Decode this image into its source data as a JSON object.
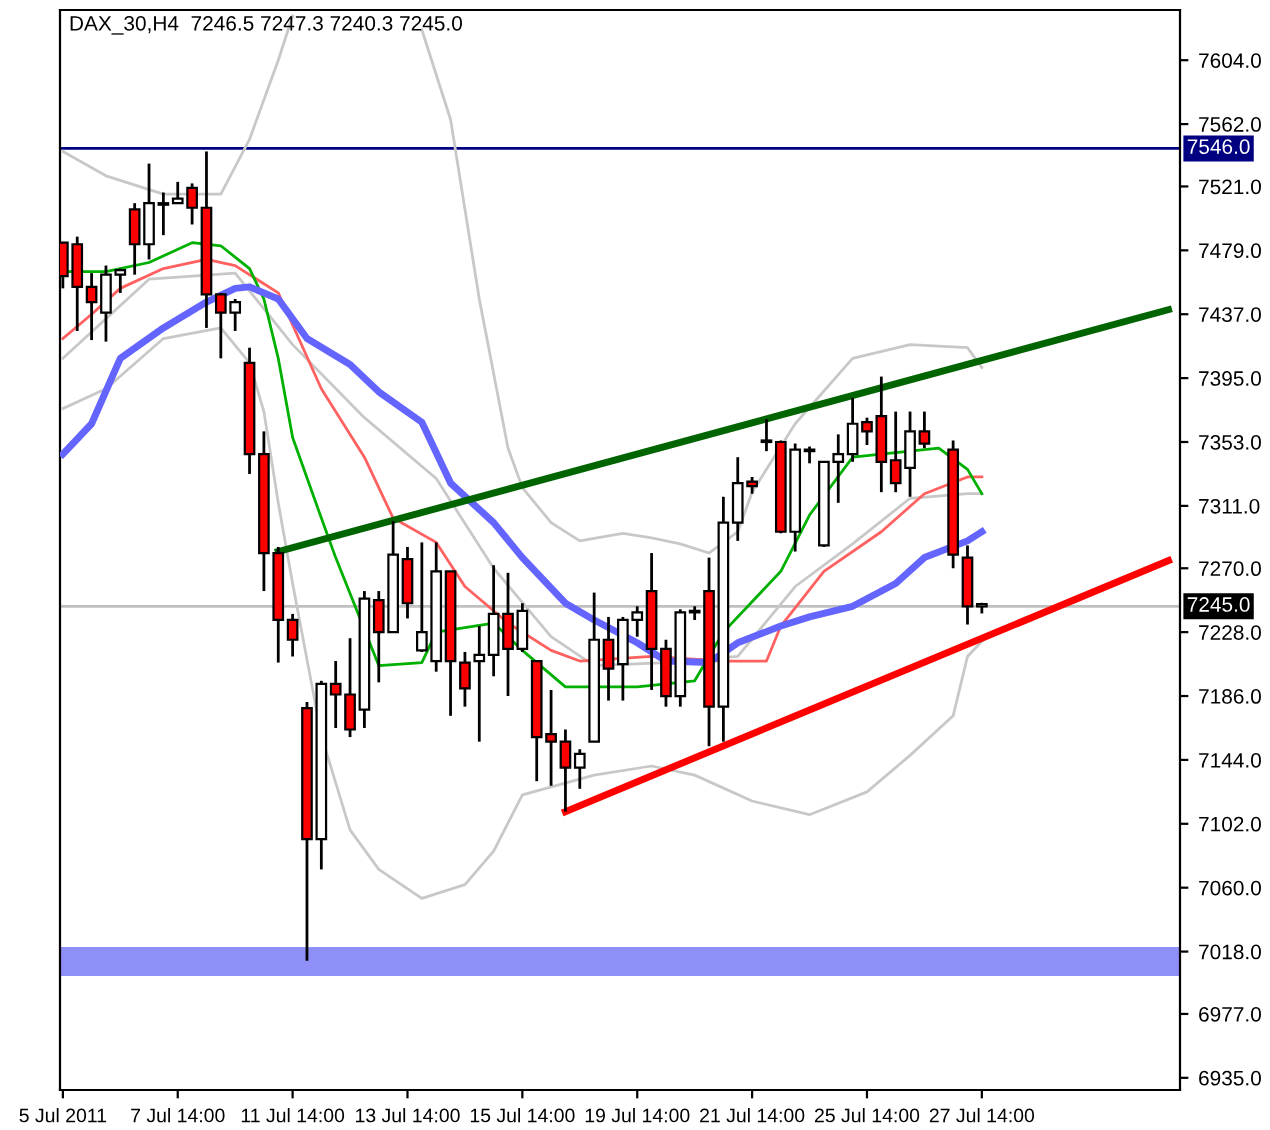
{
  "chart_data": {
    "type": "candlestick",
    "title": "DAX_30,H4  7246.5 7247.3 7240.3 7245.0",
    "categories": [
      "5 Jul 2011",
      null,
      null,
      null,
      null,
      null,
      null,
      null,
      "7 Jul 14:00",
      null,
      null,
      null,
      null,
      null,
      null,
      null,
      "11 Jul 14:00",
      null,
      null,
      null,
      null,
      null,
      null,
      null,
      "13 Jul 14:00",
      null,
      null,
      null,
      null,
      null,
      null,
      null,
      "15 Jul 14:00",
      null,
      null,
      null,
      null,
      null,
      null,
      null,
      "19 Jul 14:00",
      null,
      null,
      null,
      null,
      null,
      null,
      null,
      "21 Jul 14:00",
      null,
      null,
      null,
      null,
      null,
      null,
      null,
      "25 Jul 14:00",
      null,
      null,
      null,
      null,
      null,
      null,
      null,
      "27 Jul 14:00",
      null,
      null,
      null,
      null,
      null,
      null,
      null,
      null,
      null,
      null,
      null,
      null,
      null
    ],
    "ohlc": [
      [
        7484,
        7484,
        7454,
        7462
      ],
      [
        7483,
        7488,
        7426,
        7455
      ],
      [
        7455,
        7464,
        7420,
        7445
      ],
      [
        7438,
        7469,
        7419,
        7463
      ],
      [
        7463,
        7467,
        7451,
        7466
      ],
      [
        7506,
        7510,
        7463,
        7483
      ],
      [
        7483,
        7536,
        7473,
        7510
      ],
      [
        7509,
        7517,
        7489,
        7510
      ],
      [
        7510,
        7524,
        7510,
        7513
      ],
      [
        7520,
        7523,
        7496,
        7507
      ],
      [
        7507,
        7544,
        7428,
        7450
      ],
      [
        7450,
        7451,
        7408,
        7438
      ],
      [
        7438,
        7447,
        7426,
        7445
      ],
      [
        7405,
        7415,
        7332,
        7345
      ],
      [
        7345,
        7360,
        7255,
        7280
      ],
      [
        7280,
        7284,
        7208,
        7236
      ],
      [
        7236,
        7240,
        7212,
        7223
      ],
      [
        7178,
        7182,
        7012,
        7092
      ],
      [
        7092,
        7196,
        7072,
        7194
      ],
      [
        7194,
        7209,
        7165,
        7187
      ],
      [
        7187,
        7224,
        7159,
        7164
      ],
      [
        7177,
        7255,
        7165,
        7250
      ],
      [
        7249,
        7255,
        7195,
        7228
      ],
      [
        7228,
        7301,
        7228,
        7279
      ],
      [
        7276,
        7284,
        7237,
        7247
      ],
      [
        7216,
        7287,
        7215,
        7228
      ],
      [
        7209,
        7287,
        7202,
        7268
      ],
      [
        7268,
        7268,
        7173,
        7209
      ],
      [
        7208,
        7215,
        7179,
        7191
      ],
      [
        7209,
        7232,
        7156,
        7213
      ],
      [
        7213,
        7272,
        7199,
        7240
      ],
      [
        7240,
        7267,
        7186,
        7217
      ],
      [
        7217,
        7247,
        7215,
        7242
      ],
      [
        7209,
        7209,
        7130,
        7159
      ],
      [
        7161,
        7190,
        7127,
        7156
      ],
      [
        7156,
        7164,
        7110,
        7139
      ],
      [
        7139,
        7151,
        7125,
        7148
      ],
      [
        7156,
        7254,
        7156,
        7223
      ],
      [
        7223,
        7238,
        7183,
        7204
      ],
      [
        7207,
        7238,
        7183,
        7236
      ],
      [
        7236,
        7245,
        7225,
        7241
      ],
      [
        7255,
        7280,
        7190,
        7217
      ],
      [
        7217,
        7223,
        7179,
        7186
      ],
      [
        7186,
        7243,
        7179,
        7241
      ],
      [
        7241,
        7245,
        7236,
        7242
      ],
      [
        7255,
        7277,
        7153,
        7179
      ],
      [
        7179,
        7317,
        7156,
        7300
      ],
      [
        7300,
        7343,
        7288,
        7326
      ],
      [
        7327,
        7330,
        7319,
        7324
      ],
      [
        7353,
        7368,
        7347,
        7354
      ],
      [
        7353,
        7354,
        7293,
        7294
      ],
      [
        7294,
        7352,
        7281,
        7348
      ],
      [
        7347,
        7350,
        7339,
        7348
      ],
      [
        7285,
        7340,
        7284,
        7340
      ],
      [
        7340,
        7358,
        7313,
        7345
      ],
      [
        7345,
        7382,
        7340,
        7365
      ],
      [
        7366,
        7369,
        7351,
        7360
      ],
      [
        7370,
        7396,
        7320,
        7340
      ],
      [
        7341,
        7373,
        7320,
        7326
      ],
      [
        7336,
        7373,
        7317,
        7360
      ],
      [
        7360,
        7373,
        7349,
        7352
      ],
      null,
      [
        7348,
        7354,
        7270,
        7279
      ],
      [
        7277,
        7285,
        7233,
        7245
      ],
      [
        7246.5,
        7247.3,
        7240.3,
        7245.0
      ],
      null,
      null,
      null,
      null,
      null,
      null,
      null,
      null,
      null,
      null,
      null,
      null,
      null
    ],
    "colors": [
      "#ff0000",
      "#ff0000",
      "#ff0000",
      "#ffffff",
      "#ffffff",
      "#ff0000",
      "#ffffff",
      "#ffffff",
      "#ffffff",
      "#ff0000",
      "#ff0000",
      "#ff0000",
      "#ffffff",
      "#ff0000",
      "#ff0000",
      "#ff0000",
      "#ff0000",
      "#ff0000",
      "#ffffff",
      "#ff0000",
      "#ff0000",
      "#ffffff",
      "#ff0000",
      "#ffffff",
      "#ff0000",
      "#ffffff",
      "#ffffff",
      "#ff0000",
      "#ff0000",
      "#ffffff",
      "#ffffff",
      "#ff0000",
      "#ffffff",
      "#ff0000",
      "#ff0000",
      "#ff0000",
      "#ffffff",
      "#ffffff",
      "#ff0000",
      "#ffffff",
      "#ffffff",
      "#ff0000",
      "#ff0000",
      "#ffffff",
      "#ffffff",
      "#ff0000",
      "#ffffff",
      "#ffffff",
      "#ff0000",
      "#ffffff",
      "#ff0000",
      "#ffffff",
      "#ffffff",
      "#ffffff",
      "#ffffff",
      "#ffffff",
      "#ff0000",
      "#ff0000",
      "#ff0000",
      "#ffffff",
      "#ff0000",
      null,
      "#ff0000",
      "#ff0000",
      "#ffffff",
      null,
      null,
      null,
      null,
      null,
      null,
      null,
      null,
      null,
      null,
      null,
      null,
      null
    ],
    "series": [
      {
        "type": "line",
        "color": "#c8c8c8",
        "values": [
          7544,
          null,
          null,
          7528,
          null,
          null,
          null,
          7516,
          null,
          null,
          null,
          7516,
          null,
          7552,
          null,
          7604,
          7633,
          null,
          null,
          null,
          null,
          null,
          null,
          null,
          null,
          null,
          null,
          null,
          null,
          null,
          null,
          null,
          null,
          null,
          null,
          null,
          null,
          null,
          null,
          null,
          null,
          null,
          null,
          null,
          null,
          null,
          null,
          null,
          null,
          null,
          null,
          null,
          null,
          null,
          null,
          null,
          null,
          null,
          null,
          null,
          null,
          null,
          null,
          null,
          null,
          null,
          null,
          null,
          null,
          null,
          null,
          null,
          null,
          null,
          null,
          null,
          null,
          null
        ]
      },
      {
        "type": "line",
        "color": "#c8c8c8",
        "values": [
          null,
          null,
          null,
          null,
          null,
          null,
          null,
          null,
          null,
          null,
          null,
          null,
          null,
          null,
          null,
          null,
          null,
          null,
          null,
          null,
          null,
          null,
          null,
          null,
          null,
          7624,
          null,
          7565,
          null,
          7447,
          null,
          7349,
          7323,
          null,
          7300,
          null,
          7288,
          null,
          null,
          7293,
          null,
          7290,
          null,
          7286,
          null,
          7280,
          null,
          7294,
          7320,
          null,
          null,
          7365,
          null,
          null,
          null,
          7408,
          null,
          null,
          null,
          7417,
          null,
          null,
          null,
          7415,
          7402,
          null,
          null,
          null,
          null,
          null,
          null,
          null,
          null,
          null,
          null,
          null,
          null,
          null
        ]
      },
      {
        "type": "line",
        "color": "#c8c8c8",
        "values": [
          7375,
          null,
          null,
          7388,
          null,
          null,
          null,
          7421,
          null,
          null,
          null,
          7428,
          null,
          7405,
          7373,
          7313,
          7260,
          null,
          7160,
          null,
          7098,
          null,
          7072,
          null,
          null,
          7053,
          null,
          null,
          7062,
          null,
          7084,
          null,
          7121,
          null,
          null,
          null,
          null,
          7134,
          null,
          null,
          null,
          7140,
          null,
          null,
          7134,
          null,
          null,
          null,
          7117,
          null,
          null,
          null,
          7108,
          null,
          null,
          null,
          7123,
          null,
          null,
          7147,
          null,
          null,
          7173,
          7212,
          7222,
          null,
          null,
          null,
          null,
          null,
          null,
          null,
          null,
          null,
          null,
          null,
          null,
          null
        ]
      },
      {
        "type": "line",
        "color": "#c8c8c8",
        "values": [
          7408,
          null,
          null,
          null,
          null,
          null,
          7460,
          null,
          null,
          null,
          null,
          null,
          7464,
          null,
          null,
          null,
          7417,
          null,
          null,
          null,
          null,
          7369,
          null,
          null,
          null,
          null,
          7329,
          null,
          null,
          null,
          7270,
          null,
          null,
          null,
          7225,
          null,
          null,
          7206,
          null,
          null,
          null,
          null,
          7208,
          null,
          null,
          null,
          null,
          7212,
          null,
          null,
          null,
          7258,
          null,
          null,
          null,
          7286,
          null,
          null,
          null,
          7316,
          null,
          null,
          null,
          7319,
          7319,
          null,
          null,
          null,
          null,
          null,
          null,
          null,
          null,
          null,
          null,
          null,
          null,
          null
        ]
      },
      {
        "type": "line",
        "color": "#ff6060",
        "values": [
          7421,
          null,
          7437,
          null,
          7454,
          null,
          null,
          7467,
          null,
          null,
          7473,
          null,
          7469,
          null,
          null,
          7451,
          null,
          null,
          7388,
          null,
          null,
          7343,
          null,
          7303,
          null,
          null,
          7287,
          null,
          7258,
          null,
          null,
          7234,
          null,
          null,
          7216,
          null,
          7209,
          null,
          null,
          null,
          null,
          7212,
          null,
          null,
          null,
          null,
          7209,
          null,
          null,
          7209,
          7232,
          null,
          null,
          7268,
          null,
          null,
          null,
          7294,
          null,
          null,
          7319,
          null,
          null,
          7330,
          7330,
          null,
          null,
          null,
          null,
          null,
          null,
          null,
          null,
          null,
          null,
          null,
          null,
          null
        ]
      },
      {
        "type": "line",
        "color": "#00b000",
        "values": [
          7465,
          null,
          null,
          7465,
          null,
          null,
          7471,
          null,
          null,
          7484,
          null,
          7482,
          null,
          7467,
          7447,
          7408,
          7356,
          null,
          7303,
          7277,
          null,
          null,
          7206,
          null,
          null,
          7208,
          7228,
          null,
          null,
          null,
          7234,
          null,
          7216,
          null,
          null,
          7192,
          null,
          null,
          null,
          null,
          7192,
          null,
          null,
          null,
          7196,
          null,
          7228,
          null,
          null,
          null,
          7268,
          null,
          7305,
          null,
          null,
          7343,
          null,
          null,
          null,
          7347,
          null,
          7349,
          null,
          7335,
          7319,
          null,
          null,
          null,
          null,
          null,
          null,
          null,
          null,
          null,
          null,
          null,
          null,
          null
        ]
      },
      {
        "type": "line",
        "color": "#6464ff",
        "values": [
          7345,
          null,
          7365,
          null,
          7408,
          null,
          null,
          7428,
          null,
          null,
          7445,
          null,
          7454,
          7455,
          null,
          7447,
          null,
          7421,
          null,
          null,
          7404,
          null,
          7386,
          null,
          null,
          7366,
          null,
          7326,
          null,
          null,
          7300,
          null,
          7277,
          null,
          null,
          7247,
          null,
          7236,
          null,
          null,
          7221,
          null,
          7209,
          null,
          null,
          7208,
          null,
          7221,
          null,
          null,
          7232,
          null,
          7238,
          null,
          null,
          7245,
          null,
          null,
          7260,
          null,
          7277,
          null,
          null,
          7288,
          7294,
          null,
          null,
          null,
          null,
          null,
          null,
          null,
          null,
          null,
          null,
          null,
          null,
          null
        ]
      },
      {
        "type": "line",
        "color": "#006400",
        "values": [
          null,
          null,
          null,
          null,
          null,
          null,
          null,
          null,
          null,
          null,
          null,
          null,
          null,
          null,
          null,
          7281,
          null,
          null,
          null,
          null,
          null,
          null,
          null,
          null,
          null,
          null,
          null,
          null,
          null,
          null,
          null,
          null,
          null,
          null,
          null,
          null,
          null,
          null,
          null,
          null,
          null,
          null,
          null,
          null,
          null,
          null,
          null,
          null,
          null,
          null,
          null,
          null,
          null,
          null,
          null,
          null,
          null,
          null,
          null,
          null,
          null,
          null,
          null,
          null,
          null,
          null,
          null,
          null,
          null,
          null,
          null,
          null,
          null,
          null,
          null,
          null,
          null,
          7440
        ]
      },
      {
        "type": "line",
        "color": "#ff0000",
        "values": [
          null,
          null,
          null,
          null,
          null,
          null,
          null,
          null,
          null,
          null,
          null,
          null,
          null,
          null,
          null,
          null,
          null,
          null,
          null,
          null,
          null,
          null,
          null,
          null,
          null,
          null,
          null,
          null,
          null,
          null,
          null,
          null,
          null,
          null,
          null,
          7110,
          null,
          null,
          null,
          null,
          null,
          null,
          null,
          null,
          null,
          null,
          null,
          null,
          null,
          null,
          null,
          null,
          null,
          null,
          null,
          null,
          null,
          null,
          null,
          null,
          null,
          null,
          null,
          null,
          null,
          null,
          null,
          null,
          null,
          null,
          null,
          null,
          null,
          null,
          null,
          null,
          null,
          7275
        ]
      }
    ],
    "ref_lines": [
      {
        "axis": "y",
        "value": 7546,
        "label": "7546.0",
        "color": "#000080"
      },
      {
        "axis": "y",
        "value": 7245,
        "label": "7245.0",
        "color": "#c0c0c0"
      }
    ],
    "bands": [
      {
        "axis": "y",
        "from": 7002,
        "to": 7021,
        "color": "#8f8ff8"
      }
    ],
    "ylim": [
      6927,
      7637
    ],
    "yticks": [
      {
        "value": 6935,
        "label": "6935.0"
      },
      {
        "value": 6977,
        "label": "6977.0"
      },
      {
        "value": 7018,
        "label": "7018.0"
      },
      {
        "value": 7060,
        "label": "7060.0"
      },
      {
        "value": 7102,
        "label": "7102.0"
      },
      {
        "value": 7144,
        "label": "7144.0"
      },
      {
        "value": 7186,
        "label": "7186.0"
      },
      {
        "value": 7228,
        "label": "7228.0"
      },
      {
        "value": 7270,
        "label": "7270.0"
      },
      {
        "value": 7311,
        "label": "7311.0"
      },
      {
        "value": 7353,
        "label": "7353.0"
      },
      {
        "value": 7395,
        "label": "7395.0"
      },
      {
        "value": 7437,
        "label": "7437.0"
      },
      {
        "value": 7479,
        "label": "7479.0"
      },
      {
        "value": 7521,
        "label": "7521.0"
      },
      {
        "value": 7562,
        "label": "7562.0"
      },
      {
        "value": 7604,
        "label": "7604.0"
      }
    ],
    "grid": false
  }
}
